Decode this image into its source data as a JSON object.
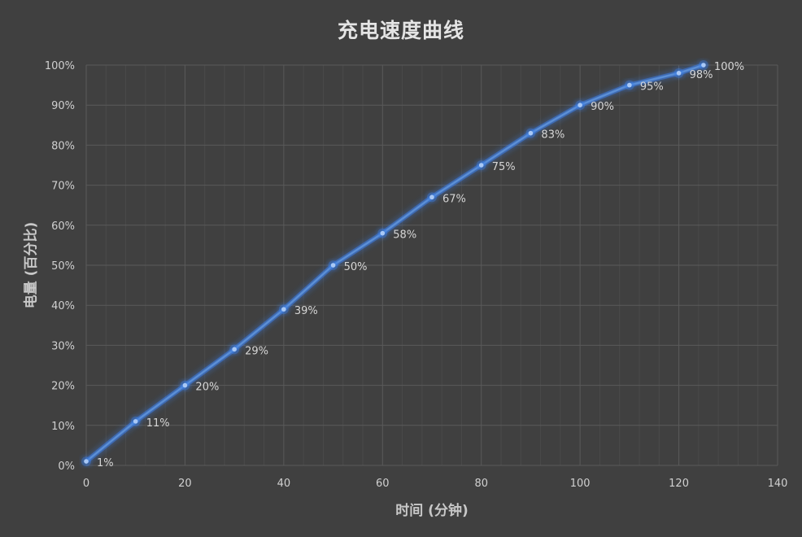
{
  "chart_data": {
    "type": "line",
    "title": "充电速度曲线",
    "xlabel": "时间 (分钟)",
    "ylabel": "电量 (百分比)",
    "xlim": [
      0,
      140
    ],
    "ylim": [
      0,
      100
    ],
    "x_ticks": [
      0,
      20,
      40,
      60,
      80,
      100,
      120,
      140
    ],
    "y_ticks": [
      "0%",
      "10%",
      "20%",
      "30%",
      "40%",
      "50%",
      "60%",
      "70%",
      "80%",
      "90%",
      "100%"
    ],
    "grid": {
      "major_x": 20,
      "minor_x": 4,
      "major_y": 10
    },
    "legend": null,
    "series": [
      {
        "name": "电量",
        "x": [
          0,
          10,
          20,
          30,
          40,
          50,
          60,
          70,
          80,
          90,
          100,
          110,
          120,
          125
        ],
        "values": [
          1,
          11,
          20,
          29,
          39,
          50,
          58,
          67,
          75,
          83,
          90,
          95,
          98,
          100
        ],
        "labels": [
          "1%",
          "11%",
          "20%",
          "29%",
          "39%",
          "50%",
          "58%",
          "67%",
          "75%",
          "83%",
          "90%",
          "95%",
          "98%",
          "100%"
        ]
      }
    ]
  },
  "colors": {
    "background": "#404040",
    "line": "#5b8fd6",
    "glow": "#3d7ee8",
    "marker": "#a9c8f5",
    "grid_major": "#5a5a5a",
    "grid_minor": "#4a4a4a",
    "tick_text": "#d0d0d0",
    "data_label": "#d6d6d6"
  }
}
